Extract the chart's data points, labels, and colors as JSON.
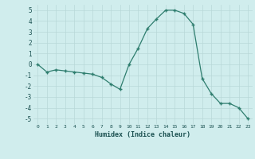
{
  "x": [
    0,
    1,
    2,
    3,
    4,
    5,
    6,
    7,
    8,
    9,
    10,
    11,
    12,
    13,
    14,
    15,
    16,
    17,
    18,
    19,
    20,
    21,
    22,
    23
  ],
  "y": [
    0,
    -0.7,
    -0.5,
    -0.6,
    -0.7,
    -0.8,
    -0.9,
    -1.2,
    -1.8,
    -2.3,
    0.0,
    1.5,
    3.3,
    4.2,
    5.0,
    5.0,
    4.7,
    3.7,
    -1.3,
    -2.7,
    -3.6,
    -3.6,
    -4.0,
    -5.0
  ],
  "line_color": "#2e7d6e",
  "marker": "+",
  "background_color": "#d0eded",
  "grid_color": "#b8d8d8",
  "xlabel": "Humidex (Indice chaleur)",
  "ylim": [
    -5.5,
    5.5
  ],
  "xlim": [
    -0.5,
    23.5
  ],
  "yticks": [
    -5,
    -4,
    -3,
    -2,
    -1,
    0,
    1,
    2,
    3,
    4,
    5
  ],
  "xticks": [
    0,
    1,
    2,
    3,
    4,
    5,
    6,
    7,
    8,
    9,
    10,
    11,
    12,
    13,
    14,
    15,
    16,
    17,
    18,
    19,
    20,
    21,
    22,
    23
  ]
}
